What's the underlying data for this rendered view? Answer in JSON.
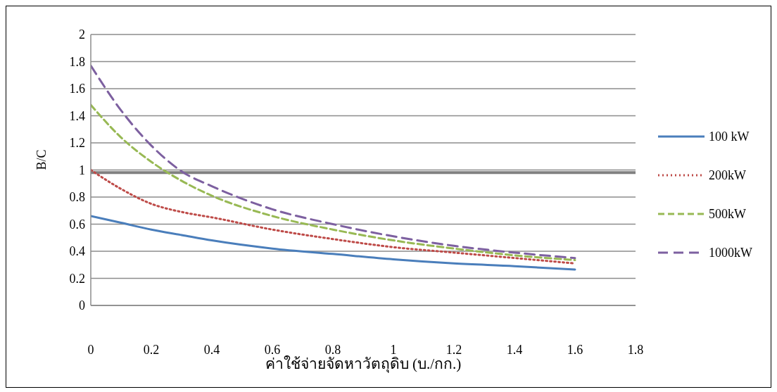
{
  "chart_data": {
    "type": "line",
    "xlabel": "ค่าใช้จ่ายจัดหาวัตถุดิบ (บ./กก.)",
    "ylabel": "B/C",
    "xlim": [
      0,
      1.8
    ],
    "xticks": [
      0,
      0.2,
      0.4,
      0.6,
      0.8,
      1,
      1.2,
      1.4,
      1.6,
      1.8
    ],
    "ylim": [
      0,
      2
    ],
    "yticks": [
      0,
      0.2,
      0.4,
      0.6,
      0.8,
      1,
      1.2,
      1.4,
      1.6,
      1.8,
      2
    ],
    "grid": "y",
    "legend": "right",
    "marker": "none",
    "x": [
      0,
      0.1,
      0.2,
      0.3,
      0.4,
      0.6,
      0.8,
      1,
      1.2,
      1.4,
      1.6
    ],
    "series": [
      {
        "name": "100 kW",
        "color": "#4a7ebb",
        "line_style": "solid",
        "values": [
          0.66,
          0.61,
          0.56,
          0.52,
          0.48,
          0.42,
          0.38,
          0.34,
          0.31,
          0.29,
          0.265
        ]
      },
      {
        "name": "200kW",
        "color": "#be4b48",
        "line_style": "dotted",
        "values": [
          1.0,
          0.86,
          0.75,
          0.69,
          0.65,
          0.56,
          0.49,
          0.43,
          0.39,
          0.35,
          0.31
        ]
      },
      {
        "name": "500kW",
        "color": "#98b954",
        "line_style": "dashed",
        "values": [
          1.48,
          1.24,
          1.06,
          0.92,
          0.81,
          0.66,
          0.56,
          0.48,
          0.42,
          0.37,
          0.335
        ]
      },
      {
        "name": "1000kW",
        "color": "#7d60a0",
        "line_style": "dashed",
        "values": [
          1.77,
          1.44,
          1.18,
          0.99,
          0.88,
          0.71,
          0.6,
          0.51,
          0.44,
          0.39,
          0.35
        ]
      }
    ],
    "ref_lines": [
      {
        "axis": "y",
        "value": 0.98,
        "color": "#808080"
      }
    ]
  }
}
